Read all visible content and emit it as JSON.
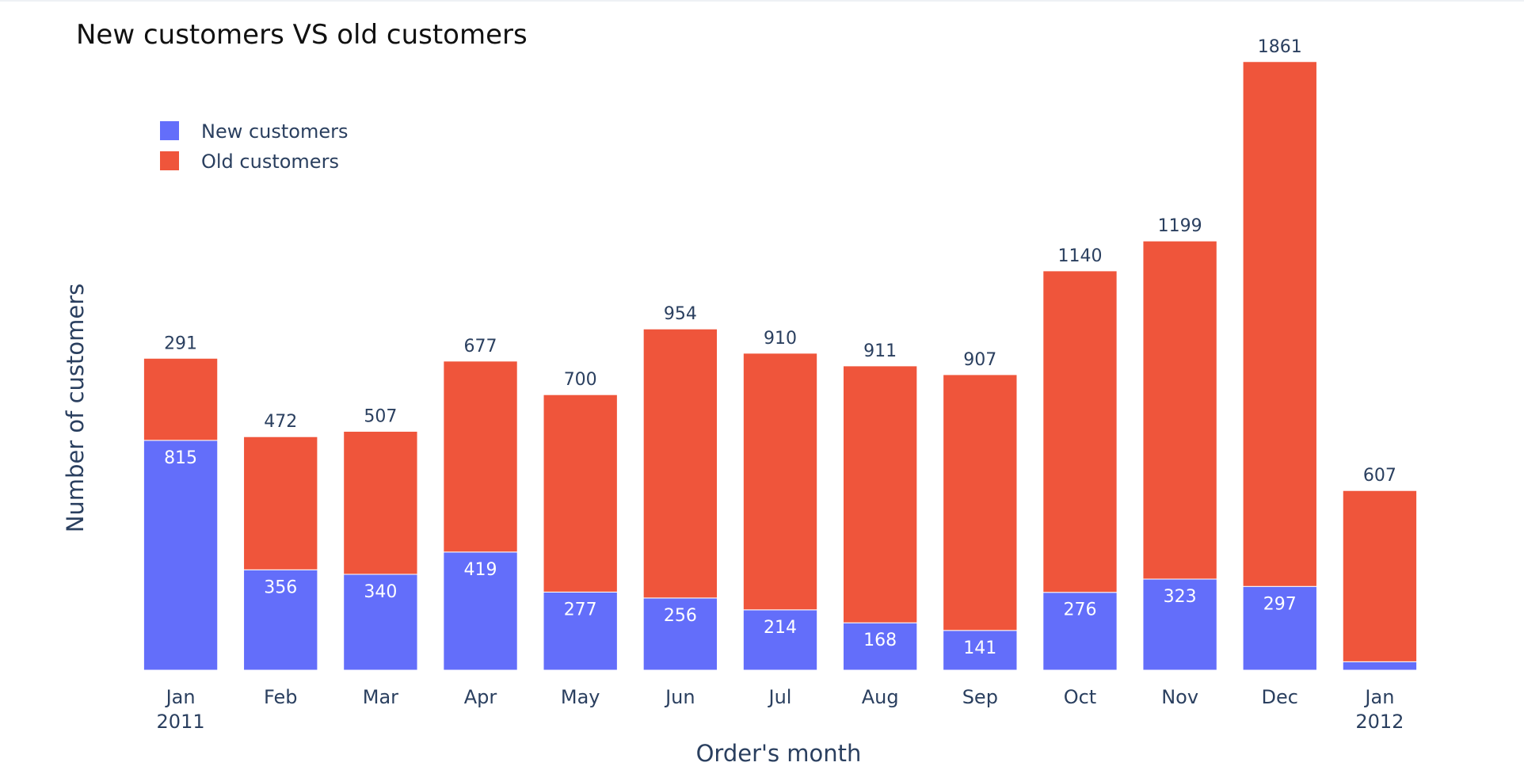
{
  "chart_data": {
    "type": "bar",
    "barmode": "stack",
    "title": "New customers VS old customers",
    "xlabel": "Order's month",
    "ylabel": "Number of customers",
    "categories": [
      "Jan\n2011",
      "Feb",
      "Mar",
      "Apr",
      "May",
      "Jun",
      "Jul",
      "Aug",
      "Sep",
      "Oct",
      "Nov",
      "Dec",
      "Jan\n2012"
    ],
    "series": [
      {
        "name": "New customers",
        "color": "#636efa",
        "values": [
          815,
          356,
          340,
          419,
          277,
          256,
          214,
          168,
          141,
          276,
          323,
          297,
          30
        ],
        "labels": [
          "815",
          "356",
          "340",
          "419",
          "277",
          "256",
          "214",
          "168",
          "141",
          "276",
          "323",
          "297",
          ""
        ]
      },
      {
        "name": "Old customers",
        "color": "#ef553b",
        "values": [
          291,
          472,
          507,
          677,
          700,
          954,
          910,
          911,
          907,
          1140,
          1199,
          1861,
          607
        ],
        "labels": [
          "291",
          "472",
          "507",
          "677",
          "700",
          "954",
          "910",
          "911",
          "907",
          "1140",
          "1199",
          "1861",
          "607"
        ]
      }
    ],
    "ylim": [
      0,
      2300
    ],
    "grid": false,
    "legend_position": "top-left"
  }
}
